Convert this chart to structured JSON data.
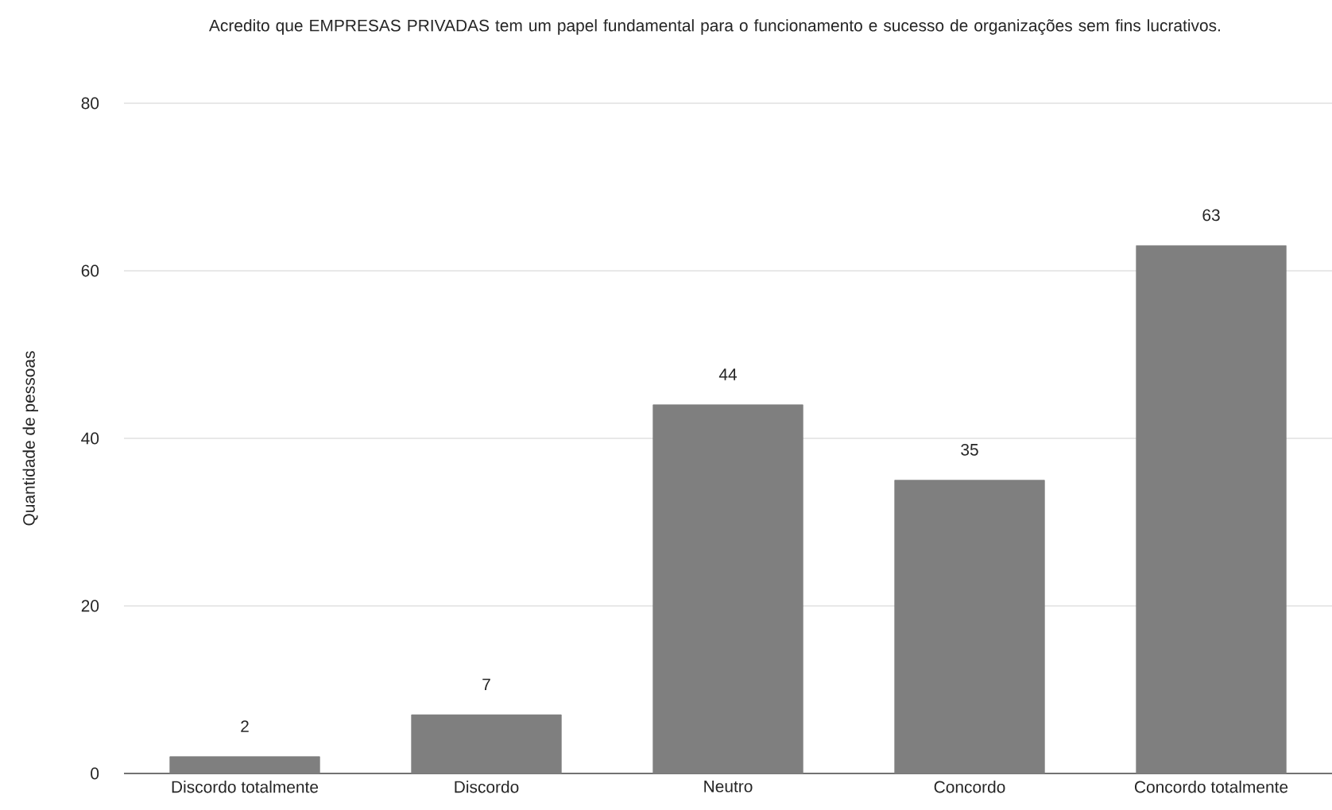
{
  "chart_data": {
    "type": "bar",
    "title": "Acredito que EMPRESAS PRIVADAS tem um papel fundamental para o funcionamento e sucesso de organizações sem fins lucrativos.",
    "ylabel": "Quantidade de pessoas",
    "categories": [
      "Discordo totalmente",
      "Discordo",
      "Neutro",
      "Concordo",
      "Concordo totalmente"
    ],
    "values": [
      2,
      7,
      44,
      35,
      63
    ],
    "color": "#7f7f7f",
    "ylim": [
      0,
      80
    ],
    "yticks": [
      0,
      20,
      40,
      60,
      80
    ],
    "grid": "y",
    "data_labels": true
  }
}
